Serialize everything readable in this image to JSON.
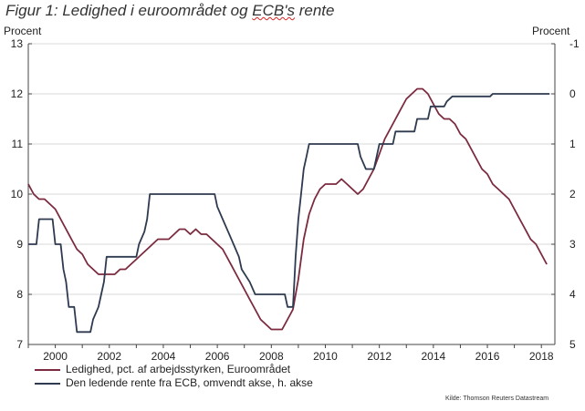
{
  "chart_data": {
    "type": "line",
    "title_parts": [
      "Figur 1: Ledighed i euroområdet og ",
      "ECB's",
      " rente"
    ],
    "ylabel_left": "Procent",
    "ylabel_right": "Procent",
    "source": "Kilde: Thomson Reuters Datastream",
    "left_axis": {
      "ylim": [
        7,
        13
      ],
      "ticks": [
        7,
        8,
        9,
        10,
        11,
        12,
        13
      ]
    },
    "right_axis": {
      "ylim": [
        5,
        -1
      ],
      "inverted": true,
      "ticks": [
        5,
        4,
        3,
        2,
        1,
        0,
        -1
      ]
    },
    "xlim": [
      1999,
      2018.5
    ],
    "x_ticks": [
      2000,
      2002,
      2004,
      2006,
      2008,
      2010,
      2012,
      2014,
      2016,
      2018
    ],
    "series": [
      {
        "name": "Ledighed, pct. af arbejdsstyrken, Euroområdet",
        "axis": "left",
        "color": "#7b2a3f",
        "points": [
          [
            1999.0,
            10.2
          ],
          [
            1999.2,
            10.0
          ],
          [
            1999.4,
            9.9
          ],
          [
            1999.6,
            9.9
          ],
          [
            1999.8,
            9.8
          ],
          [
            2000.0,
            9.7
          ],
          [
            2000.2,
            9.5
          ],
          [
            2000.4,
            9.3
          ],
          [
            2000.6,
            9.1
          ],
          [
            2000.8,
            8.9
          ],
          [
            2001.0,
            8.8
          ],
          [
            2001.2,
            8.6
          ],
          [
            2001.4,
            8.5
          ],
          [
            2001.6,
            8.4
          ],
          [
            2001.8,
            8.4
          ],
          [
            2002.0,
            8.4
          ],
          [
            2002.2,
            8.4
          ],
          [
            2002.4,
            8.5
          ],
          [
            2002.6,
            8.5
          ],
          [
            2002.8,
            8.6
          ],
          [
            2003.0,
            8.7
          ],
          [
            2003.2,
            8.8
          ],
          [
            2003.4,
            8.9
          ],
          [
            2003.6,
            9.0
          ],
          [
            2003.8,
            9.1
          ],
          [
            2004.0,
            9.1
          ],
          [
            2004.2,
            9.1
          ],
          [
            2004.4,
            9.2
          ],
          [
            2004.6,
            9.3
          ],
          [
            2004.8,
            9.3
          ],
          [
            2005.0,
            9.2
          ],
          [
            2005.2,
            9.3
          ],
          [
            2005.4,
            9.2
          ],
          [
            2005.6,
            9.2
          ],
          [
            2005.8,
            9.1
          ],
          [
            2006.0,
            9.0
          ],
          [
            2006.2,
            8.9
          ],
          [
            2006.4,
            8.7
          ],
          [
            2006.6,
            8.5
          ],
          [
            2006.8,
            8.3
          ],
          [
            2007.0,
            8.1
          ],
          [
            2007.2,
            7.9
          ],
          [
            2007.4,
            7.7
          ],
          [
            2007.6,
            7.5
          ],
          [
            2007.8,
            7.4
          ],
          [
            2008.0,
            7.3
          ],
          [
            2008.2,
            7.3
          ],
          [
            2008.4,
            7.3
          ],
          [
            2008.6,
            7.5
          ],
          [
            2008.8,
            7.7
          ],
          [
            2009.0,
            8.3
          ],
          [
            2009.2,
            9.1
          ],
          [
            2009.4,
            9.6
          ],
          [
            2009.6,
            9.9
          ],
          [
            2009.8,
            10.1
          ],
          [
            2010.0,
            10.2
          ],
          [
            2010.2,
            10.2
          ],
          [
            2010.4,
            10.2
          ],
          [
            2010.6,
            10.3
          ],
          [
            2010.8,
            10.2
          ],
          [
            2011.0,
            10.1
          ],
          [
            2011.2,
            10.0
          ],
          [
            2011.4,
            10.1
          ],
          [
            2011.6,
            10.3
          ],
          [
            2011.8,
            10.5
          ],
          [
            2012.0,
            10.8
          ],
          [
            2012.2,
            11.1
          ],
          [
            2012.4,
            11.3
          ],
          [
            2012.6,
            11.5
          ],
          [
            2012.8,
            11.7
          ],
          [
            2013.0,
            11.9
          ],
          [
            2013.2,
            12.0
          ],
          [
            2013.4,
            12.1
          ],
          [
            2013.6,
            12.1
          ],
          [
            2013.8,
            12.0
          ],
          [
            2014.0,
            11.8
          ],
          [
            2014.2,
            11.6
          ],
          [
            2014.4,
            11.5
          ],
          [
            2014.6,
            11.5
          ],
          [
            2014.8,
            11.4
          ],
          [
            2015.0,
            11.2
          ],
          [
            2015.2,
            11.1
          ],
          [
            2015.4,
            10.9
          ],
          [
            2015.6,
            10.7
          ],
          [
            2015.8,
            10.5
          ],
          [
            2016.0,
            10.4
          ],
          [
            2016.2,
            10.2
          ],
          [
            2016.4,
            10.1
          ],
          [
            2016.6,
            10.0
          ],
          [
            2016.8,
            9.9
          ],
          [
            2017.0,
            9.7
          ],
          [
            2017.2,
            9.5
          ],
          [
            2017.4,
            9.3
          ],
          [
            2017.6,
            9.1
          ],
          [
            2017.8,
            9.0
          ],
          [
            2018.0,
            8.8
          ],
          [
            2018.2,
            8.6
          ]
        ]
      },
      {
        "name": "Den ledende rente fra ECB, omvendt akse, h. akse",
        "axis": "right",
        "color": "#2e3a4f",
        "points": [
          [
            1999.0,
            3.0
          ],
          [
            1999.3,
            3.0
          ],
          [
            1999.4,
            2.5
          ],
          [
            1999.9,
            2.5
          ],
          [
            2000.0,
            3.0
          ],
          [
            2000.2,
            3.0
          ],
          [
            2000.3,
            3.5
          ],
          [
            2000.4,
            3.75
          ],
          [
            2000.5,
            4.25
          ],
          [
            2000.7,
            4.25
          ],
          [
            2000.8,
            4.75
          ],
          [
            2001.3,
            4.75
          ],
          [
            2001.4,
            4.5
          ],
          [
            2001.6,
            4.25
          ],
          [
            2001.7,
            4.0
          ],
          [
            2001.8,
            3.75
          ],
          [
            2001.9,
            3.25
          ],
          [
            2002.0,
            3.25
          ],
          [
            2002.1,
            3.25
          ],
          [
            2002.9,
            3.25
          ],
          [
            2003.0,
            3.25
          ],
          [
            2003.1,
            3.0
          ],
          [
            2003.3,
            2.75
          ],
          [
            2003.4,
            2.5
          ],
          [
            2003.5,
            2.0
          ],
          [
            2005.9,
            2.0
          ],
          [
            2006.0,
            2.25
          ],
          [
            2006.2,
            2.5
          ],
          [
            2006.4,
            2.75
          ],
          [
            2006.6,
            3.0
          ],
          [
            2006.8,
            3.25
          ],
          [
            2006.9,
            3.5
          ],
          [
            2007.2,
            3.75
          ],
          [
            2007.4,
            4.0
          ],
          [
            2008.5,
            4.0
          ],
          [
            2008.6,
            4.25
          ],
          [
            2008.8,
            4.25
          ],
          [
            2008.85,
            3.75
          ],
          [
            2008.9,
            3.25
          ],
          [
            2009.0,
            2.5
          ],
          [
            2009.1,
            2.0
          ],
          [
            2009.2,
            1.5
          ],
          [
            2009.3,
            1.25
          ],
          [
            2009.4,
            1.0
          ],
          [
            2011.2,
            1.0
          ],
          [
            2011.3,
            1.25
          ],
          [
            2011.5,
            1.5
          ],
          [
            2011.8,
            1.5
          ],
          [
            2011.9,
            1.25
          ],
          [
            2012.0,
            1.0
          ],
          [
            2012.5,
            1.0
          ],
          [
            2012.6,
            0.75
          ],
          [
            2013.3,
            0.75
          ],
          [
            2013.4,
            0.5
          ],
          [
            2013.8,
            0.5
          ],
          [
            2013.9,
            0.25
          ],
          [
            2014.4,
            0.25
          ],
          [
            2014.5,
            0.15
          ],
          [
            2014.7,
            0.05
          ],
          [
            2016.1,
            0.05
          ],
          [
            2016.2,
            0.0
          ],
          [
            2018.3,
            0.0
          ]
        ]
      }
    ]
  },
  "legend": [
    {
      "label": "Ledighed, pct. af arbejdsstyrken, Euroområdet",
      "color": "#7b2a3f"
    },
    {
      "label": "Den ledende rente fra ECB, omvendt akse, h. akse",
      "color": "#2e3a4f"
    }
  ]
}
